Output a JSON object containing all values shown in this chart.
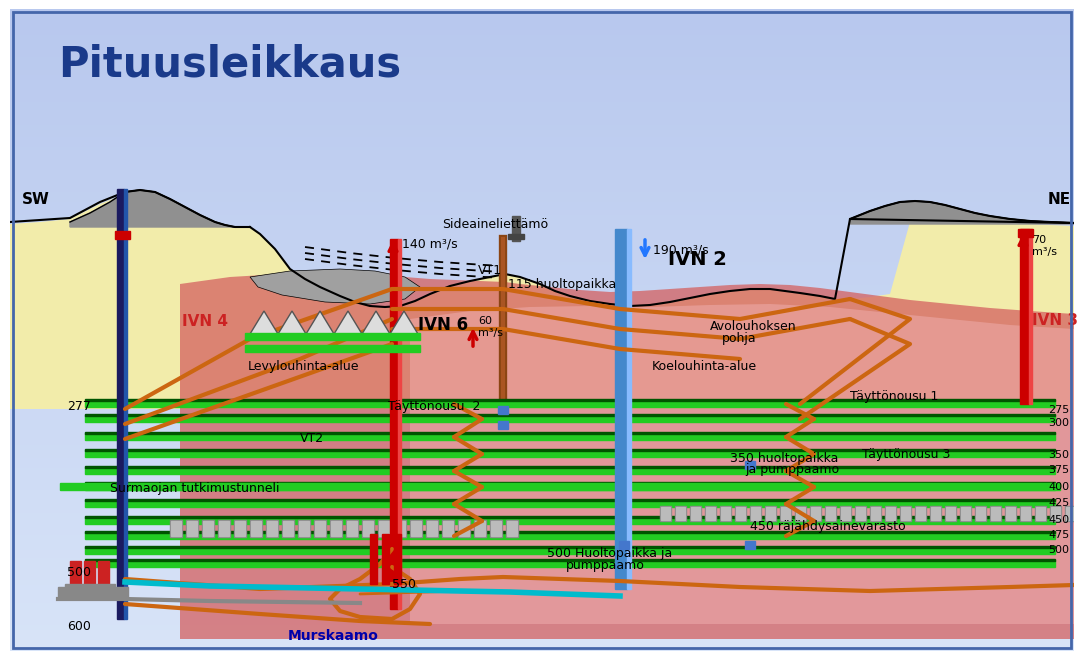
{
  "title": "Pituusleikkaus",
  "title_color": "#1a3a8a",
  "label_SW": "SW",
  "label_NE": "NE",
  "bg_color_top": "#c0ccee",
  "bg_color_bot": "#d8e4f4",
  "ground_color": "#f2ecaa",
  "ore_dark": "#d46060",
  "ore_light": "#f0a8a8",
  "rock_gray": "#aaaaaa",
  "green_tunnel": "#22cc22",
  "green_dark": "#005500",
  "orange_ramp": "#cc6611",
  "labels": {
    "sideaine": "Sideaineliettämö",
    "ivn4": "IVN 4",
    "ivn6": "IVN 6",
    "ivn2": "IVN 2",
    "ivn3": "IVN 3",
    "vt1": "VT1",
    "vt2": "VT2",
    "levy": "Levylouhinta-alue",
    "koe": "Koelouhinta-alue",
    "avolouhoksen": "Avolouhoksen",
    "pohja": "pohja",
    "taytt2": "Täyttönousu  2",
    "taytt1": "Täyttönousu 1",
    "taytt3": "Täyttönousu 3",
    "surma": "Surmaojan tutkimustunneli",
    "huolto115": "115 huoltopaikka",
    "huolto350": "350 huoltopaikka",
    "pumppaamo350": "ja pumppaamo",
    "huolto500": "500 Huoltopaikka ja",
    "pumppaamo500": "pumppaamo",
    "rajahdys": "450 räjähdysainevarasto",
    "murskaamo": "Murskaamo",
    "flow140": "140 m³/s",
    "flow190": "190 m³/s",
    "flow70": "70\nm³/s",
    "flow60": "60\nm³/s",
    "d277": "277",
    "d500": "500",
    "d600": "600",
    "d550": "550",
    "r275": "275",
    "r300": "300",
    "r350": "350",
    "r375": "375",
    "r400": "400",
    "r425": "425",
    "r450": "450",
    "r475": "475",
    "r500": "500"
  }
}
